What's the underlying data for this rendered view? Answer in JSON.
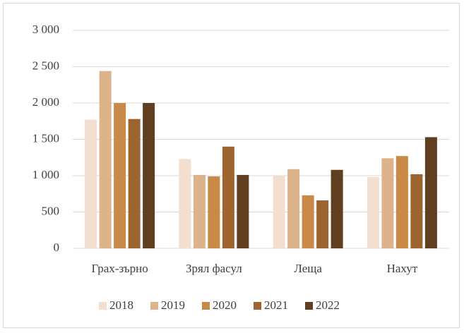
{
  "chart_data": {
    "type": "bar",
    "categories": [
      "Грах-зърно",
      "Зрял фасул",
      "Леща",
      "Нахут"
    ],
    "series": [
      {
        "name": "2018",
        "color": "#f2dfcf",
        "values": [
          1770,
          1230,
          1000,
          980
        ]
      },
      {
        "name": "2019",
        "color": "#dcb38a",
        "values": [
          2440,
          1010,
          1090,
          1240
        ]
      },
      {
        "name": "2020",
        "color": "#c98a48",
        "values": [
          2000,
          990,
          730,
          1270
        ]
      },
      {
        "name": "2021",
        "color": "#9e6430",
        "values": [
          1780,
          1400,
          660,
          1020
        ]
      },
      {
        "name": "2022",
        "color": "#603f20",
        "values": [
          2000,
          1010,
          1080,
          1530
        ]
      }
    ],
    "ylim": [
      0,
      3000
    ],
    "yticks": [
      0,
      500,
      {
        "value": 1000,
        "label": "1 000"
      },
      {
        "value": 1500,
        "label": "1 500"
      },
      {
        "value": 2000,
        "label": "2 000"
      },
      {
        "value": 2500,
        "label": "2 500"
      },
      {
        "value": 3000,
        "label": "3 000"
      }
    ],
    "grid": true,
    "legend": "bottom"
  }
}
